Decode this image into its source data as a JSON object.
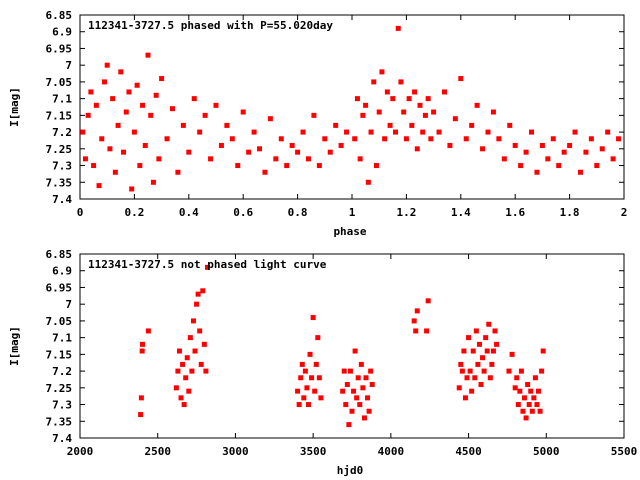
{
  "chart_data": [
    {
      "type": "scatter",
      "title": "112341-3727.5 phased with P=55.020day",
      "xlabel": "phase",
      "ylabel": "I[mag]",
      "xlim": [
        0,
        2
      ],
      "ylim": [
        7.4,
        6.85
      ],
      "y_inverted": true,
      "x_ticks": [
        0,
        0.2,
        0.4,
        0.6,
        0.8,
        1,
        1.2,
        1.4,
        1.6,
        1.8,
        2
      ],
      "x_tick_labels": [
        "0",
        "0.2",
        "0.4",
        "0.6",
        "0.8",
        "1",
        "1.2",
        "1.4",
        "1.6",
        "1.8",
        "2"
      ],
      "y_ticks": [
        6.85,
        6.9,
        6.95,
        7,
        7.05,
        7.1,
        7.15,
        7.2,
        7.25,
        7.3,
        7.35,
        7.4
      ],
      "y_tick_labels": [
        "6.85",
        "6.9",
        "6.95",
        "7",
        "7.05",
        "7.1",
        "7.15",
        "7.2",
        "7.25",
        "7.3",
        "7.35",
        "7.4"
      ],
      "grid": false,
      "marker_color": "#ff0000",
      "series": [
        {
          "x": [
            0.01,
            0.02,
            0.03,
            0.04,
            0.05,
            0.06,
            0.07,
            0.08,
            0.09,
            0.1,
            0.11,
            0.12,
            0.13,
            0.14,
            0.15,
            0.16,
            0.17,
            0.18,
            0.19,
            0.2,
            0.21,
            0.22,
            0.23,
            0.24,
            0.25,
            0.26,
            0.27,
            0.28,
            0.29,
            0.3,
            0.32,
            0.34,
            0.36,
            0.38,
            0.4,
            0.42,
            0.44,
            0.46,
            0.48,
            0.5,
            0.52,
            0.54,
            0.56,
            0.58,
            0.6,
            0.62,
            0.64,
            0.66,
            0.68,
            0.7,
            0.72,
            0.74,
            0.76,
            0.78,
            0.8,
            0.82,
            0.84,
            0.86,
            0.88,
            0.9,
            0.92,
            0.94,
            0.96,
            0.98,
            1.01,
            1.02,
            1.03,
            1.04,
            1.05,
            1.06,
            1.07,
            1.08,
            1.09,
            1.1,
            1.11,
            1.12,
            1.13,
            1.14,
            1.15,
            1.16,
            1.17,
            1.18,
            1.19,
            1.2,
            1.21,
            1.22,
            1.23,
            1.24,
            1.25,
            1.26,
            1.27,
            1.28,
            1.29,
            1.3,
            1.32,
            1.34,
            1.36,
            1.38,
            1.4,
            1.42,
            1.44,
            1.46,
            1.48,
            1.5,
            1.52,
            1.54,
            1.56,
            1.58,
            1.6,
            1.62,
            1.64,
            1.66,
            1.68,
            1.7,
            1.72,
            1.74,
            1.76,
            1.78,
            1.8,
            1.82,
            1.84,
            1.86,
            1.88,
            1.9,
            1.92,
            1.94,
            1.96,
            1.98
          ],
          "y": [
            7.2,
            7.28,
            7.15,
            7.08,
            7.3,
            7.12,
            7.36,
            7.22,
            7.05,
            7.0,
            7.25,
            7.1,
            7.32,
            7.18,
            7.02,
            7.26,
            7.14,
            7.08,
            7.37,
            7.2,
            7.06,
            7.3,
            7.12,
            7.24,
            6.97,
            7.15,
            7.35,
            7.09,
            7.28,
            7.04,
            7.22,
            7.13,
            7.32,
            7.18,
            7.26,
            7.1,
            7.2,
            7.15,
            7.28,
            7.12,
            7.24,
            7.18,
            7.22,
            7.3,
            7.14,
            7.26,
            7.2,
            7.25,
            7.32,
            7.16,
            7.28,
            7.22,
            7.3,
            7.24,
            7.26,
            7.2,
            7.28,
            7.15,
            7.3,
            7.22,
            7.26,
            7.18,
            7.24,
            7.2,
            7.22,
            7.1,
            7.28,
            7.15,
            7.12,
            7.35,
            7.2,
            7.05,
            7.3,
            7.14,
            7.02,
            7.22,
            7.08,
            7.18,
            7.1,
            7.2,
            6.89,
            7.05,
            7.14,
            7.22,
            7.1,
            7.18,
            7.08,
            7.25,
            7.12,
            7.2,
            7.15,
            7.1,
            7.22,
            7.14,
            7.2,
            7.08,
            7.24,
            7.16,
            7.04,
            7.22,
            7.18,
            7.12,
            7.25,
            7.2,
            7.14,
            7.22,
            7.28,
            7.18,
            7.24,
            7.3,
            7.26,
            7.2,
            7.32,
            7.24,
            7.28,
            7.22,
            7.3,
            7.26,
            7.24,
            7.2,
            7.32,
            7.26,
            7.22,
            7.3,
            7.25,
            7.2,
            7.28,
            7.22
          ]
        }
      ]
    },
    {
      "type": "scatter",
      "title": "112341-3727.5 not phased light curve",
      "xlabel": "hjd0",
      "ylabel": "I[mag]",
      "xlim": [
        2000,
        5500
      ],
      "ylim": [
        7.4,
        6.85
      ],
      "y_inverted": true,
      "x_ticks": [
        2000,
        2500,
        3000,
        3500,
        4000,
        4500,
        5000,
        5500
      ],
      "x_tick_labels": [
        "2000",
        "2500",
        "3000",
        "3500",
        "4000",
        "4500",
        "5000",
        "5500"
      ],
      "y_ticks": [
        6.85,
        6.9,
        6.95,
        7,
        7.05,
        7.1,
        7.15,
        7.2,
        7.25,
        7.3,
        7.35,
        7.4
      ],
      "y_tick_labels": [
        "6.85",
        "6.9",
        "6.95",
        "7",
        "7.05",
        "7.1",
        "7.15",
        "7.2",
        "7.25",
        "7.3",
        "7.35",
        "7.4"
      ],
      "grid": false,
      "marker_color": "#ff0000",
      "series": [
        {
          "x": [
            2390,
            2395,
            2400,
            2402,
            2440,
            2620,
            2630,
            2640,
            2650,
            2660,
            2670,
            2680,
            2690,
            2700,
            2710,
            2720,
            2730,
            2740,
            2750,
            2760,
            2770,
            2780,
            2790,
            2800,
            2810,
            2820,
            3400,
            3410,
            3420,
            3430,
            3440,
            3450,
            3460,
            3470,
            3480,
            3490,
            3500,
            3510,
            3520,
            3530,
            3540,
            3550,
            3690,
            3700,
            3710,
            3720,
            3730,
            3740,
            3750,
            3760,
            3770,
            3780,
            3790,
            3800,
            3810,
            3820,
            3830,
            3840,
            3850,
            3860,
            3870,
            3880,
            4150,
            4160,
            4170,
            4230,
            4240,
            4440,
            4450,
            4460,
            4470,
            4480,
            4490,
            4500,
            4510,
            4520,
            4530,
            4540,
            4550,
            4560,
            4570,
            4580,
            4590,
            4600,
            4610,
            4620,
            4630,
            4640,
            4650,
            4660,
            4670,
            4680,
            4760,
            4780,
            4800,
            4810,
            4820,
            4830,
            4840,
            4850,
            4860,
            4870,
            4880,
            4890,
            4900,
            4910,
            4920,
            4930,
            4940,
            4950,
            4960,
            4970,
            4980
          ],
          "y": [
            7.33,
            7.28,
            7.14,
            7.12,
            7.08,
            7.25,
            7.2,
            7.14,
            7.28,
            7.18,
            7.3,
            7.22,
            7.16,
            7.26,
            7.1,
            7.2,
            7.05,
            7.14,
            7.0,
            6.97,
            7.08,
            7.18,
            6.96,
            7.12,
            7.2,
            6.89,
            7.26,
            7.3,
            7.22,
            7.18,
            7.28,
            7.2,
            7.25,
            7.3,
            7.15,
            7.22,
            7.04,
            7.26,
            7.18,
            7.1,
            7.22,
            7.28,
            7.26,
            7.2,
            7.3,
            7.24,
            7.36,
            7.2,
            7.32,
            7.26,
            7.14,
            7.28,
            7.22,
            7.3,
            7.18,
            7.25,
            7.34,
            7.22,
            7.28,
            7.32,
            7.2,
            7.24,
            7.05,
            7.08,
            7.02,
            7.08,
            6.99,
            7.25,
            7.18,
            7.2,
            7.14,
            7.28,
            7.22,
            7.1,
            7.2,
            7.26,
            7.14,
            7.22,
            7.08,
            7.18,
            7.12,
            7.24,
            7.16,
            7.2,
            7.1,
            7.14,
            7.06,
            7.22,
            7.18,
            7.14,
            7.08,
            7.12,
            7.2,
            7.15,
            7.25,
            7.22,
            7.3,
            7.26,
            7.2,
            7.32,
            7.28,
            7.34,
            7.24,
            7.3,
            7.26,
            7.32,
            7.28,
            7.22,
            7.3,
            7.26,
            7.32,
            7.2,
            7.14
          ]
        }
      ]
    }
  ]
}
